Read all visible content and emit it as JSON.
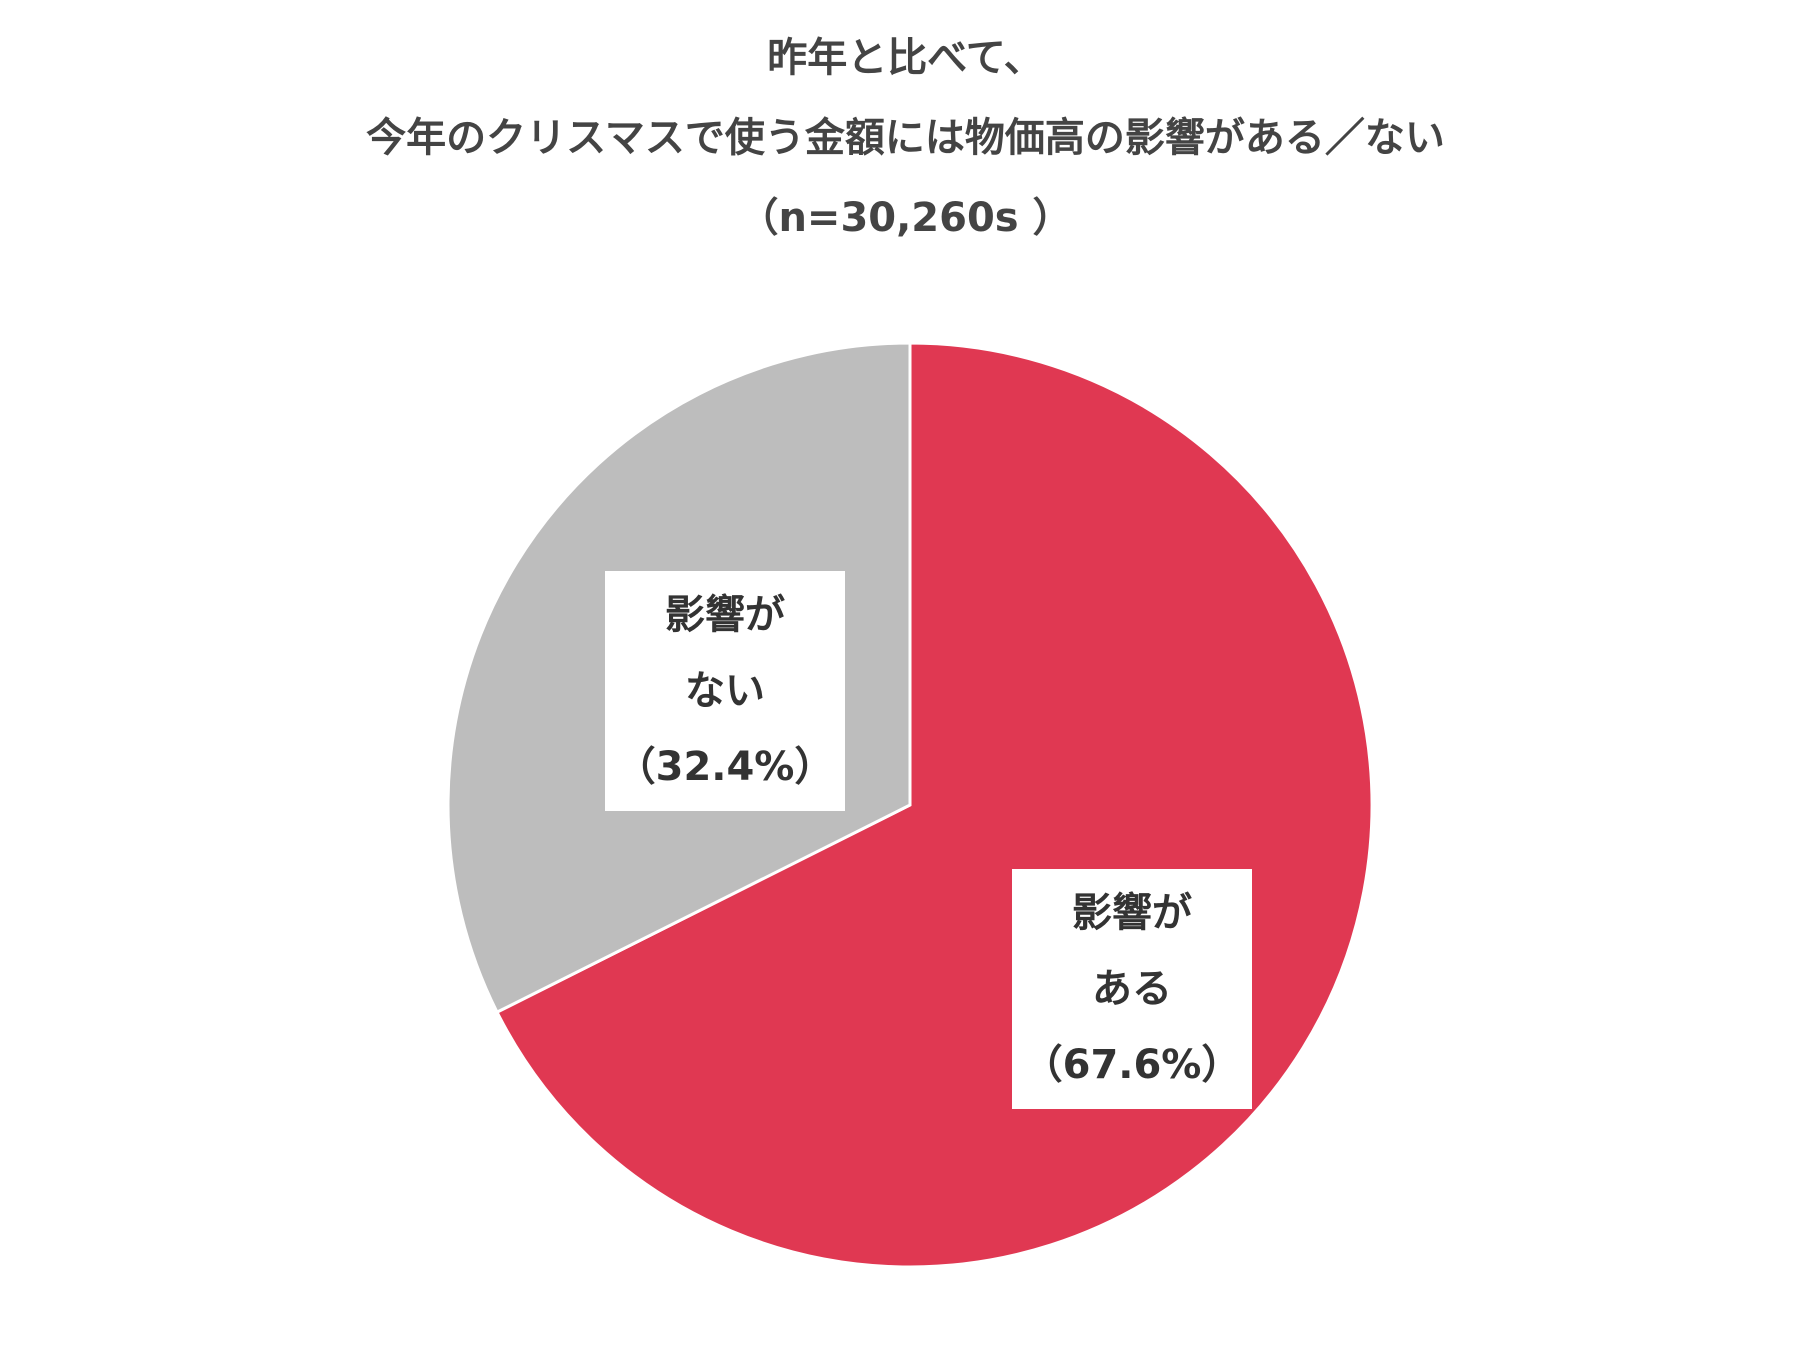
{
  "chart_data": {
    "type": "pie",
    "title_lines": [
      "昨年と比べて、",
      "今年のクリスマスで使う金額には物価高の影響がある／ない",
      "（n=30,260s ）"
    ],
    "slices": [
      {
        "label_lines": [
          "影響が",
          "ある"
        ],
        "value": 67.6,
        "value_text": "（67.6%）",
        "color": "#e03852"
      },
      {
        "label_lines": [
          "影響が",
          "ない"
        ],
        "value": 32.4,
        "value_text": "（32.4%）",
        "color": "#bdbdbd"
      }
    ],
    "start_angle": "12 o'clock",
    "direction": "clockwise",
    "slice_border_color": "#ffffff"
  }
}
